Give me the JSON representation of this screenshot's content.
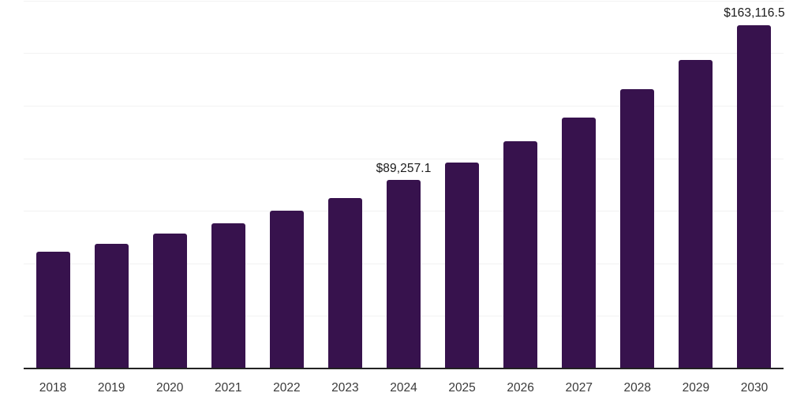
{
  "chart_data": {
    "type": "bar",
    "title": "",
    "xlabel": "",
    "ylabel": "",
    "categories": [
      "2018",
      "2019",
      "2020",
      "2021",
      "2022",
      "2023",
      "2024",
      "2025",
      "2026",
      "2027",
      "2028",
      "2029",
      "2030"
    ],
    "values": [
      55200,
      59000,
      63800,
      68700,
      74700,
      80700,
      89257.1,
      97600,
      107800,
      119000,
      132600,
      146400,
      163116.5
    ],
    "data_labels": [
      {
        "category": "2024",
        "text": "$89,257.1"
      },
      {
        "category": "2030",
        "text": "$163,116.5"
      }
    ],
    "ylim": [
      0,
      175000
    ],
    "gridline_interval": 25000,
    "grid": "horizontal",
    "legend": "none",
    "y_axis_tick_labels_visible": false,
    "colors": {
      "bar": "#37124D",
      "gridline": "#f2f2f2",
      "axis_line": "#222222",
      "data_label_text": "#1a1a1a",
      "tick_label_text": "#3a3a3a",
      "background": "#ffffff"
    }
  }
}
